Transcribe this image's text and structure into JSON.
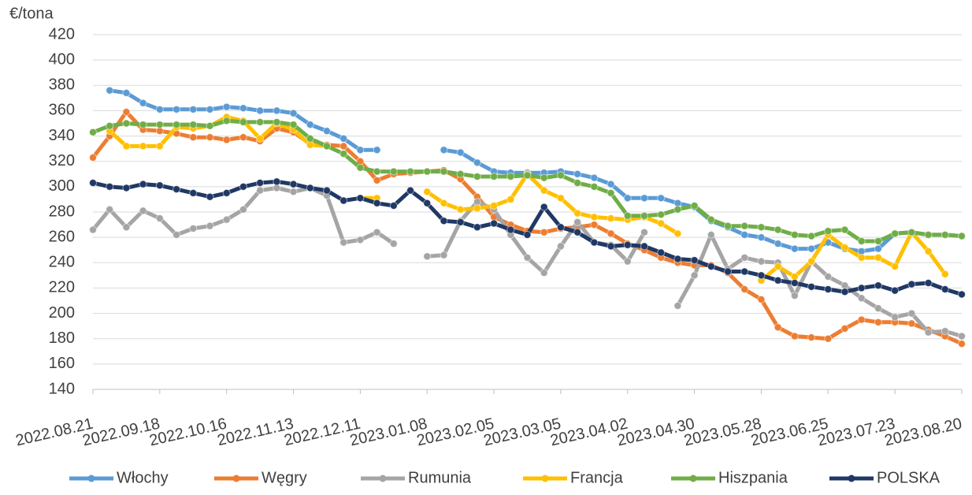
{
  "chart_data": {
    "type": "line",
    "y_label": "€/tona",
    "categories": [
      "2022.08.21",
      null,
      null,
      null,
      "2022.09.18",
      null,
      null,
      null,
      "2022.10.16",
      null,
      null,
      null,
      "2022.11.13",
      null,
      null,
      null,
      "2022.12.11",
      null,
      null,
      null,
      "2023.01.08",
      null,
      null,
      null,
      "2023.02.05",
      null,
      null,
      null,
      "2023.03.05",
      null,
      null,
      null,
      "2023.04.02",
      null,
      null,
      null,
      "2023.04.30",
      null,
      null,
      null,
      "2023.05.28",
      null,
      null,
      null,
      "2023.06.25",
      null,
      null,
      null,
      "2023.07.23",
      null,
      null,
      null,
      "2023.08.20"
    ],
    "ylim": [
      140,
      420
    ],
    "yticks": [
      140,
      160,
      180,
      200,
      220,
      240,
      260,
      280,
      300,
      320,
      340,
      360,
      380,
      400,
      420
    ],
    "grid": true,
    "legend": "bottom",
    "series": [
      {
        "name": "Włochy",
        "color": "#5b9bd5",
        "values": [
          null,
          376,
          374,
          366,
          361,
          361,
          361,
          361,
          363,
          362,
          360,
          360,
          358,
          349,
          344,
          338,
          329,
          329,
          null,
          null,
          null,
          329,
          327,
          319,
          312,
          311,
          311,
          311,
          312,
          310,
          307,
          302,
          291,
          291,
          291,
          287,
          284,
          273,
          268,
          262,
          260,
          255,
          251,
          251,
          256,
          251,
          249,
          251,
          263,
          264,
          262,
          262,
          261
        ]
      },
      {
        "name": "Węgry",
        "color": "#ed7d31",
        "values": [
          323,
          340,
          359,
          345,
          344,
          342,
          339,
          339,
          337,
          339,
          336,
          346,
          343,
          334,
          333,
          332,
          320,
          305,
          310,
          311,
          312,
          313,
          306,
          292,
          276,
          270,
          265,
          264,
          267,
          268,
          270,
          263,
          255,
          250,
          244,
          240,
          238,
          238,
          232,
          219,
          211,
          189,
          182,
          181,
          180,
          188,
          195,
          193,
          193,
          192,
          187,
          182,
          176
        ]
      },
      {
        "name": "Rumunia",
        "color": "#a5a5a5",
        "values": [
          266,
          282,
          268,
          281,
          275,
          262,
          267,
          269,
          274,
          282,
          297,
          299,
          296,
          299,
          293,
          256,
          258,
          264,
          255,
          null,
          245,
          246,
          273,
          288,
          282,
          262,
          244,
          232,
          253,
          272,
          256,
          254,
          241,
          264,
          null,
          206,
          230,
          262,
          235,
          244,
          241,
          240,
          214,
          241,
          229,
          222,
          212,
          204,
          197,
          200,
          185,
          186,
          182
        ]
      },
      {
        "name": "Francja",
        "color": "#ffc000",
        "values": [
          null,
          344,
          332,
          332,
          332,
          347,
          346,
          348,
          355,
          352,
          338,
          350,
          345,
          333,
          332,
          null,
          291,
          291,
          null,
          null,
          296,
          287,
          282,
          283,
          285,
          290,
          310,
          297,
          291,
          279,
          276,
          275,
          274,
          276,
          271,
          263,
          null,
          null,
          null,
          null,
          226,
          237,
          229,
          241,
          262,
          252,
          244,
          244,
          237,
          264,
          249,
          231,
          null
        ]
      },
      {
        "name": "Hiszpania",
        "color": "#70ad47",
        "values": [
          343,
          348,
          350,
          349,
          349,
          349,
          349,
          348,
          352,
          351,
          351,
          351,
          349,
          338,
          332,
          326,
          315,
          312,
          312,
          312,
          312,
          312,
          310,
          308,
          308,
          308,
          309,
          307,
          309,
          303,
          300,
          295,
          277,
          277,
          278,
          282,
          285,
          274,
          269,
          269,
          268,
          266,
          262,
          261,
          265,
          266,
          257,
          257,
          263,
          264,
          262,
          262,
          261
        ]
      },
      {
        "name": "POLSKA",
        "color": "#203864",
        "values": [
          303,
          300,
          299,
          302,
          301,
          298,
          295,
          292,
          295,
          300,
          303,
          304,
          302,
          299,
          297,
          289,
          291,
          287,
          285,
          297,
          287,
          273,
          272,
          268,
          271,
          266,
          262,
          284,
          268,
          264,
          256,
          253,
          254,
          253,
          248,
          243,
          242,
          237,
          233,
          233,
          230,
          226,
          224,
          221,
          219,
          217,
          220,
          222,
          218,
          223,
          224,
          219,
          215
        ]
      }
    ]
  }
}
